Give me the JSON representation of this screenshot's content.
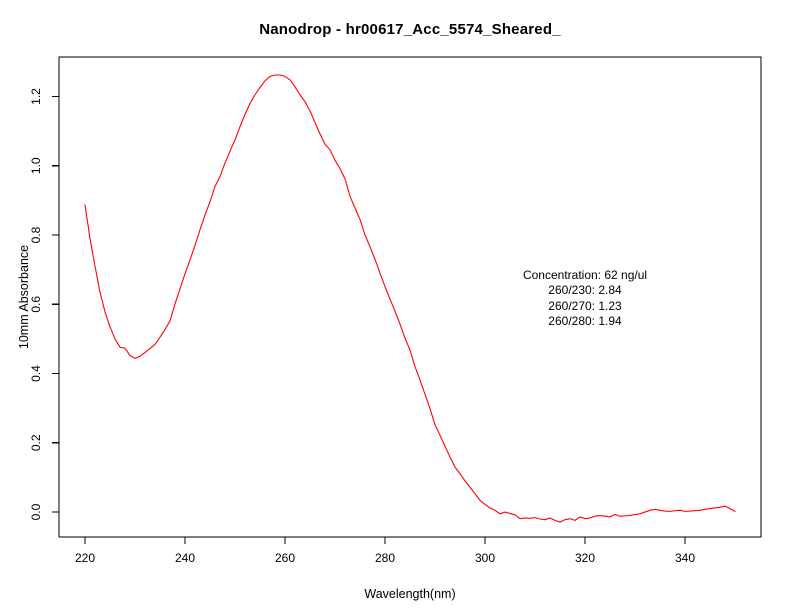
{
  "title": "Nanodrop - hr00617_Acc_5574_Sheared_",
  "annotation": {
    "lines": [
      "Concentration: 62 ng/ul",
      "260/230: 2.84",
      "260/270: 1.23",
      "260/280: 1.94"
    ]
  },
  "chart_data": {
    "type": "line",
    "title": "Nanodrop - hr00617_Acc_5574_Sheared_",
    "xlabel": "Wavelength(nm)",
    "ylabel": "10mm Absorbance",
    "xlim": [
      214.8,
      355.2
    ],
    "ylim": [
      -0.072,
      1.314
    ],
    "x_ticks": [
      220,
      240,
      260,
      280,
      300,
      320,
      340
    ],
    "x_tick_labels": [
      "220",
      "240",
      "260",
      "280",
      "300",
      "320",
      "340"
    ],
    "y_ticks": [
      0.0,
      0.2,
      0.4,
      0.6,
      0.8,
      1.0,
      1.2
    ],
    "y_tick_labels": [
      "0.0",
      "0.2",
      "0.4",
      "0.6",
      "0.8",
      "1.0",
      "1.2"
    ],
    "grid": false,
    "legend": "none",
    "line_color": "#ff0000",
    "box_color": "#000000",
    "background": "#ffffff",
    "annotation_text": [
      "Concentration: 62 ng/ul",
      "260/230: 2.84",
      "260/270: 1.23",
      "260/280: 1.94"
    ],
    "annotation_position": {
      "x_nm": 320,
      "y_abs": 0.62
    },
    "series": [
      {
        "name": "absorbance-spectrum",
        "x_start": 220,
        "x_step": 1,
        "x_end": 350,
        "y": [
          0.887,
          0.79,
          0.71,
          0.635,
          0.578,
          0.535,
          0.5,
          0.476,
          0.473,
          0.452,
          0.444,
          0.45,
          0.461,
          0.472,
          0.484,
          0.505,
          0.527,
          0.552,
          0.601,
          0.645,
          0.688,
          0.728,
          0.77,
          0.815,
          0.858,
          0.896,
          0.94,
          0.969,
          1.008,
          1.042,
          1.075,
          1.113,
          1.148,
          1.18,
          1.205,
          1.226,
          1.245,
          1.258,
          1.262,
          1.262,
          1.258,
          1.248,
          1.228,
          1.205,
          1.185,
          1.158,
          1.125,
          1.092,
          1.062,
          1.046,
          1.016,
          0.992,
          0.962,
          0.912,
          0.878,
          0.845,
          0.8,
          0.766,
          0.73,
          0.69,
          0.651,
          0.615,
          0.58,
          0.543,
          0.502,
          0.468,
          0.42,
          0.381,
          0.34,
          0.299,
          0.252,
          0.222,
          0.19,
          0.159,
          0.13,
          0.111,
          0.09,
          0.072,
          0.053,
          0.034,
          0.022,
          0.012,
          0.005,
          -0.005,
          0.0,
          -0.004,
          -0.008,
          -0.019,
          -0.017,
          -0.018,
          -0.016,
          -0.02,
          -0.022,
          -0.017,
          -0.024,
          -0.029,
          -0.022,
          -0.019,
          -0.024,
          -0.014,
          -0.019,
          -0.017,
          -0.012,
          -0.01,
          -0.012,
          -0.014,
          -0.007,
          -0.012,
          -0.011,
          -0.01,
          -0.007,
          -0.005,
          0.0,
          0.005,
          0.008,
          0.005,
          0.003,
          0.002,
          0.004,
          0.005,
          0.002,
          0.003,
          0.004,
          0.005,
          0.008,
          0.01,
          0.012,
          0.014,
          0.017,
          0.01,
          0.002
        ]
      }
    ]
  }
}
